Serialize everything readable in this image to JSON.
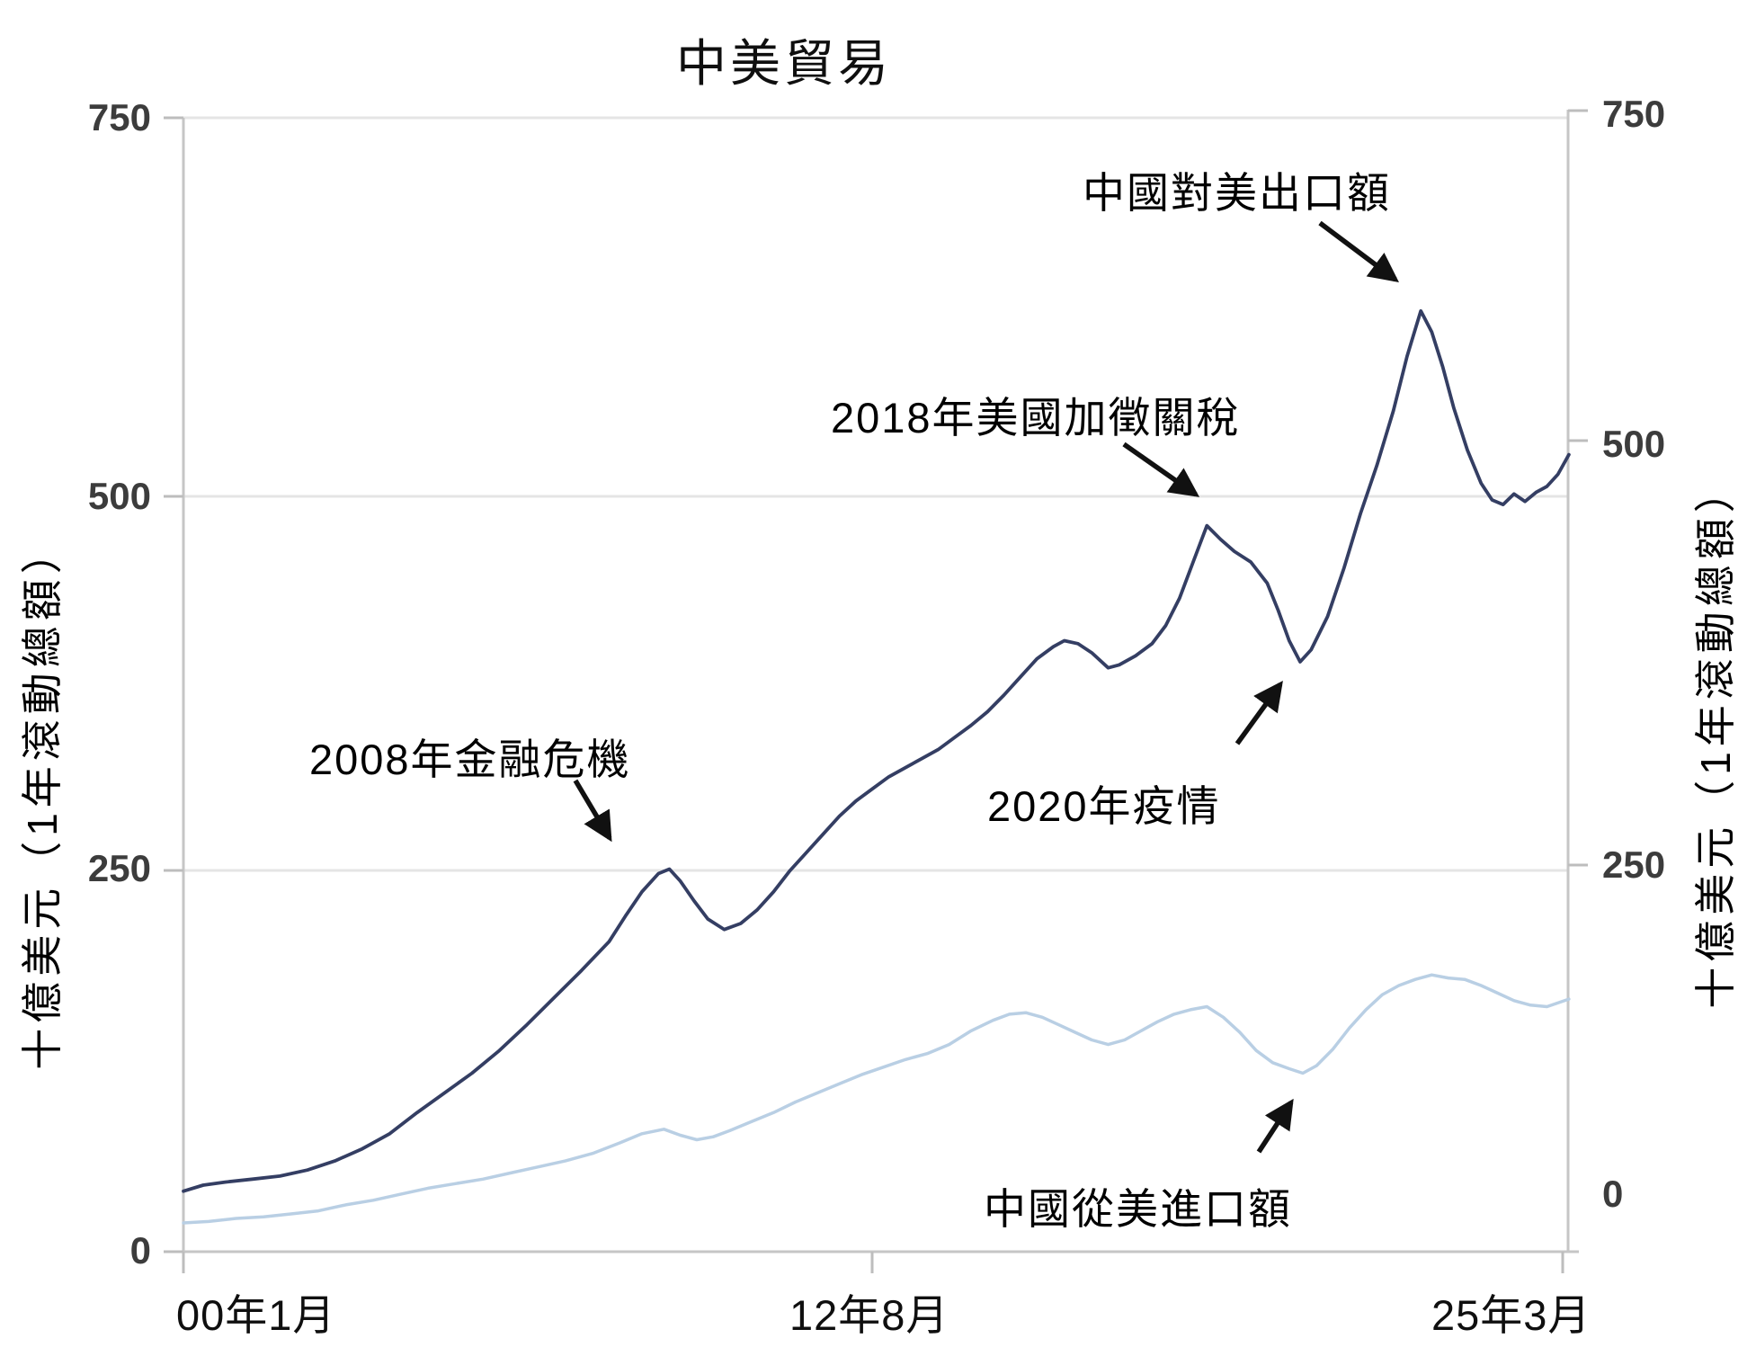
{
  "title": "中美貿易",
  "y_axis_left": {
    "label": "十億美元（1年滾動總額）",
    "ticks": [
      "750",
      "500",
      "250",
      "0"
    ]
  },
  "y_axis_right": {
    "label": "十億美元（1年滾動總額）",
    "ticks": [
      "750",
      "500",
      "250",
      "0"
    ]
  },
  "x_axis": {
    "ticks": [
      "00年1月",
      "12年8月",
      "25年3月"
    ]
  },
  "annotations": {
    "exports_label": "中國對美出口額",
    "tariffs_2018": "2018年美國加徵關稅",
    "crisis_2008": "2008年金融危機",
    "pandemic_2020": "2020年疫情",
    "imports_label": "中國從美進口額"
  },
  "colors": {
    "exports_line": "#343e63",
    "imports_line": "#b9cfe4",
    "grid": "#e5e5e5",
    "axis": "#c6c6c6",
    "annotation": "#111111",
    "tick_text": "#3c3c3c"
  },
  "chart_data": {
    "type": "line",
    "title": "中美貿易",
    "ylabel": "十億美元（1年滾動總額）",
    "ylim": [
      0,
      750
    ],
    "yticks": [
      0,
      250,
      500,
      750
    ],
    "grid": "horizontal",
    "x_unit": "decimal_year",
    "x_range": [
      2000.04,
      2025.3
    ],
    "xtick_positions": [
      2000.04,
      2012.63,
      2025.17
    ],
    "xtick_labels": [
      "00年1月",
      "12年8月",
      "25年3月"
    ],
    "legend_position": "inline-annotations",
    "series": [
      {
        "name": "中國對美出口額",
        "color": "#343e63",
        "x": [
          2000.04,
          2000.4,
          2000.8,
          2001.3,
          2001.8,
          2002.3,
          2002.8,
          2003.3,
          2003.8,
          2004.3,
          2004.8,
          2005.3,
          2005.8,
          2006.3,
          2006.8,
          2007.3,
          2007.8,
          2008.1,
          2008.4,
          2008.7,
          2008.9,
          2009.1,
          2009.35,
          2009.6,
          2009.9,
          2010.2,
          2010.5,
          2010.8,
          2011.1,
          2011.4,
          2011.7,
          2012.0,
          2012.3,
          2012.6,
          2012.9,
          2013.2,
          2013.5,
          2013.8,
          2014.1,
          2014.4,
          2014.7,
          2015.0,
          2015.3,
          2015.6,
          2015.9,
          2016.1,
          2016.35,
          2016.6,
          2016.9,
          2017.1,
          2017.4,
          2017.7,
          2017.95,
          2018.2,
          2018.45,
          2018.7,
          2018.95,
          2019.2,
          2019.5,
          2019.8,
          2020.0,
          2020.2,
          2020.4,
          2020.6,
          2020.9,
          2021.2,
          2021.5,
          2021.8,
          2022.1,
          2022.35,
          2022.6,
          2022.8,
          2023.0,
          2023.2,
          2023.45,
          2023.7,
          2023.9,
          2024.1,
          2024.3,
          2024.5,
          2024.7,
          2024.9,
          2025.1,
          2025.3
        ],
        "values": [
          40,
          44,
          46,
          48,
          50,
          54,
          60,
          68,
          78,
          92,
          105,
          118,
          133,
          150,
          168,
          186,
          205,
          222,
          238,
          250,
          253,
          245,
          232,
          220,
          213,
          217,
          226,
          238,
          252,
          264,
          276,
          288,
          298,
          306,
          314,
          320,
          326,
          332,
          340,
          348,
          357,
          368,
          380,
          392,
          400,
          404,
          402,
          396,
          386,
          388,
          394,
          402,
          414,
          432,
          456,
          480,
          471,
          463,
          456,
          442,
          424,
          404,
          390,
          398,
          420,
          452,
          488,
          520,
          556,
          592,
          622,
          608,
          585,
          558,
          530,
          508,
          497,
          494,
          501,
          496,
          502,
          506,
          514,
          527
        ]
      },
      {
        "name": "中國從美進口額",
        "color": "#b9cfe4",
        "x": [
          2000.04,
          2000.5,
          2001.0,
          2001.5,
          2002.0,
          2002.5,
          2003.0,
          2003.5,
          2004.0,
          2004.5,
          2005.0,
          2005.5,
          2006.0,
          2006.5,
          2007.0,
          2007.5,
          2008.0,
          2008.4,
          2008.8,
          2009.1,
          2009.4,
          2009.7,
          2010.0,
          2010.4,
          2010.8,
          2011.2,
          2011.6,
          2012.0,
          2012.4,
          2012.8,
          2013.2,
          2013.6,
          2014.0,
          2014.4,
          2014.8,
          2015.1,
          2015.4,
          2015.7,
          2016.0,
          2016.3,
          2016.6,
          2016.9,
          2017.2,
          2017.5,
          2017.8,
          2018.1,
          2018.4,
          2018.7,
          2019.0,
          2019.3,
          2019.6,
          2019.9,
          2020.2,
          2020.45,
          2020.7,
          2021.0,
          2021.3,
          2021.6,
          2021.9,
          2022.2,
          2022.5,
          2022.8,
          2023.1,
          2023.4,
          2023.7,
          2024.0,
          2024.3,
          2024.6,
          2024.9,
          2025.3
        ],
        "values": [
          19,
          20,
          22,
          23,
          25,
          27,
          31,
          34,
          38,
          42,
          45,
          48,
          52,
          56,
          60,
          65,
          72,
          78,
          81,
          77,
          74,
          76,
          80,
          86,
          92,
          99,
          105,
          111,
          117,
          122,
          127,
          131,
          137,
          146,
          153,
          157,
          158,
          155,
          150,
          145,
          140,
          137,
          140,
          146,
          152,
          157,
          160,
          162,
          155,
          145,
          133,
          125,
          121,
          118,
          123,
          134,
          148,
          160,
          170,
          176,
          180,
          183,
          181,
          180,
          176,
          171,
          166,
          163,
          162,
          167
        ]
      }
    ],
    "events": [
      {
        "label": "2008年金融危機",
        "x": 2008.9,
        "series": "中國對美出口額",
        "value": 253
      },
      {
        "label": "2018年美國加徵關稅",
        "x": 2018.7,
        "series": "中國對美出口額",
        "value": 480
      },
      {
        "label": "2020年疫情",
        "x": 2020.4,
        "series": "中國對美出口額",
        "value": 390
      },
      {
        "label": "中國對美出口額 (peak)",
        "x": 2022.6,
        "series": "中國對美出口額",
        "value": 622
      },
      {
        "label": "中國從美進口額 (dip)",
        "x": 2020.45,
        "series": "中國從美進口額",
        "value": 118
      }
    ]
  }
}
